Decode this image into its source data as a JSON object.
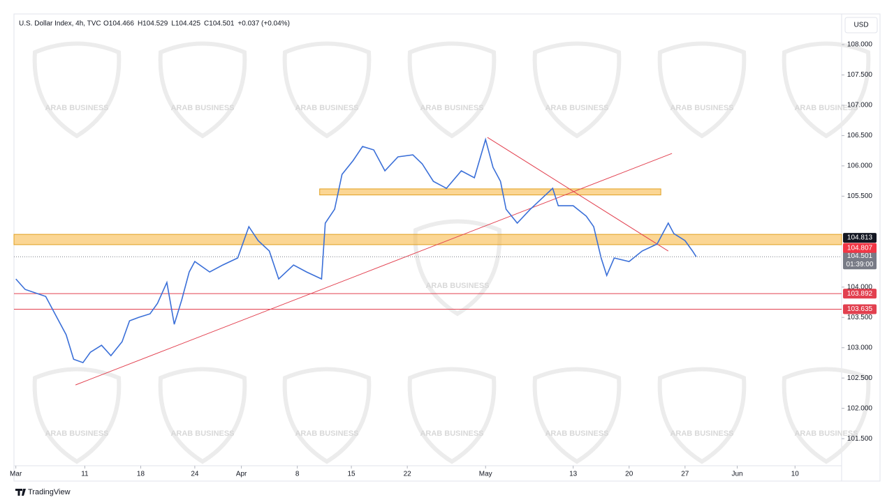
{
  "chart_data": {
    "type": "line",
    "title": "U.S. Dollar Index, 4h, TVC",
    "legend_values": [
      "O104.466",
      "H104.529",
      "L104.425",
      "C104.501",
      "+0.037 (+0.04%)"
    ],
    "currency": "USD",
    "brand": "TradingView",
    "watermark": "ARAB BUSINESS",
    "color": "#3a6fd8",
    "x": [
      1,
      6,
      17,
      22,
      28,
      32,
      37,
      41,
      47,
      52,
      58,
      62,
      67,
      73,
      77,
      82,
      86,
      90,
      94,
      97,
      105,
      112,
      120,
      126,
      131,
      137,
      142,
      150,
      157,
      165,
      167,
      172,
      176,
      182,
      187,
      193,
      199,
      206,
      214,
      219,
      225,
      232,
      240,
      247,
      253,
      257,
      261,
      264,
      270,
      277,
      283,
      289,
      292,
      300,
      307,
      311,
      315,
      318,
      322,
      330,
      337,
      345,
      351,
      354,
      360,
      364,
      366
    ],
    "values": [
      104.134,
      103.962,
      103.847,
      103.559,
      103.214,
      102.811,
      102.754,
      102.926,
      103.041,
      102.869,
      103.099,
      103.444,
      103.502,
      103.559,
      103.732,
      104.077,
      103.387,
      103.789,
      104.249,
      104.422,
      104.249,
      104.364,
      104.48,
      104.997,
      104.767,
      104.595,
      104.134,
      104.364,
      104.249,
      104.134,
      105.055,
      105.285,
      105.86,
      106.09,
      106.32,
      106.263,
      105.918,
      106.148,
      106.182,
      106.033,
      105.745,
      105.63,
      105.918,
      105.803,
      106.435,
      105.975,
      105.745,
      105.285,
      105.055,
      105.285,
      105.457,
      105.63,
      105.342,
      105.342,
      105.17,
      104.997,
      104.48,
      104.192,
      104.48,
      104.422,
      104.595,
      104.71,
      105.055,
      104.882,
      104.767,
      104.595,
      104.501
    ],
    "xlim": [
      0,
      444
    ],
    "xticks": [
      {
        "value": 1,
        "label": "Mar"
      },
      {
        "value": 38,
        "label": "11"
      },
      {
        "value": 68,
        "label": "18"
      },
      {
        "value": 97,
        "label": "24"
      },
      {
        "value": 122,
        "label": "Apr"
      },
      {
        "value": 152,
        "label": "8"
      },
      {
        "value": 181,
        "label": "15"
      },
      {
        "value": 211,
        "label": "22"
      },
      {
        "value": 253,
        "label": "May"
      },
      {
        "value": 300,
        "label": "13"
      },
      {
        "value": 330,
        "label": "20"
      },
      {
        "value": 360,
        "label": "27"
      },
      {
        "value": 388,
        "label": "Jun"
      },
      {
        "value": 419,
        "label": "10"
      }
    ],
    "ylim": [
      100.8,
      108.506
    ],
    "yticks": [
      {
        "value": 101.5,
        "label": "101.500"
      },
      {
        "value": 102,
        "label": "102.000"
      },
      {
        "value": 102.5,
        "label": "102.500"
      },
      {
        "value": 103,
        "label": "103.000"
      },
      {
        "value": 103.5,
        "label": "103.500"
      },
      {
        "value": 104,
        "label": "104.000"
      },
      {
        "value": 105.5,
        "label": "105.500"
      },
      {
        "value": 106,
        "label": "106.000"
      },
      {
        "value": 106.5,
        "label": "106.500"
      },
      {
        "value": 107,
        "label": "107.000"
      },
      {
        "value": 107.5,
        "label": "107.500"
      },
      {
        "value": 108,
        "label": "108.000"
      }
    ],
    "grid": false,
    "levels": [
      103.892,
      103.635
    ],
    "level_color": "#e2404f",
    "zones": [
      {
        "from": 104.7,
        "to": 104.87,
        "x": [
          0,
          444
        ]
      },
      {
        "from": 105.52,
        "to": 105.62,
        "x": [
          164,
          347
        ]
      }
    ],
    "zone_color": "#f7b53c",
    "trendlines": [
      {
        "x": [
          33,
          353
        ],
        "values": [
          102.386,
          106.205
        ]
      },
      {
        "x": [
          254,
          351
        ],
        "values": [
          106.47,
          104.595
        ]
      }
    ],
    "markers": [
      {
        "value": 104.813,
        "color": "#131722"
      },
      {
        "value": 104.807,
        "color": "#f23645"
      }
    ],
    "last_price": {
      "value": 104.501,
      "countdown": "01:39:00",
      "color": "#787b86"
    }
  }
}
